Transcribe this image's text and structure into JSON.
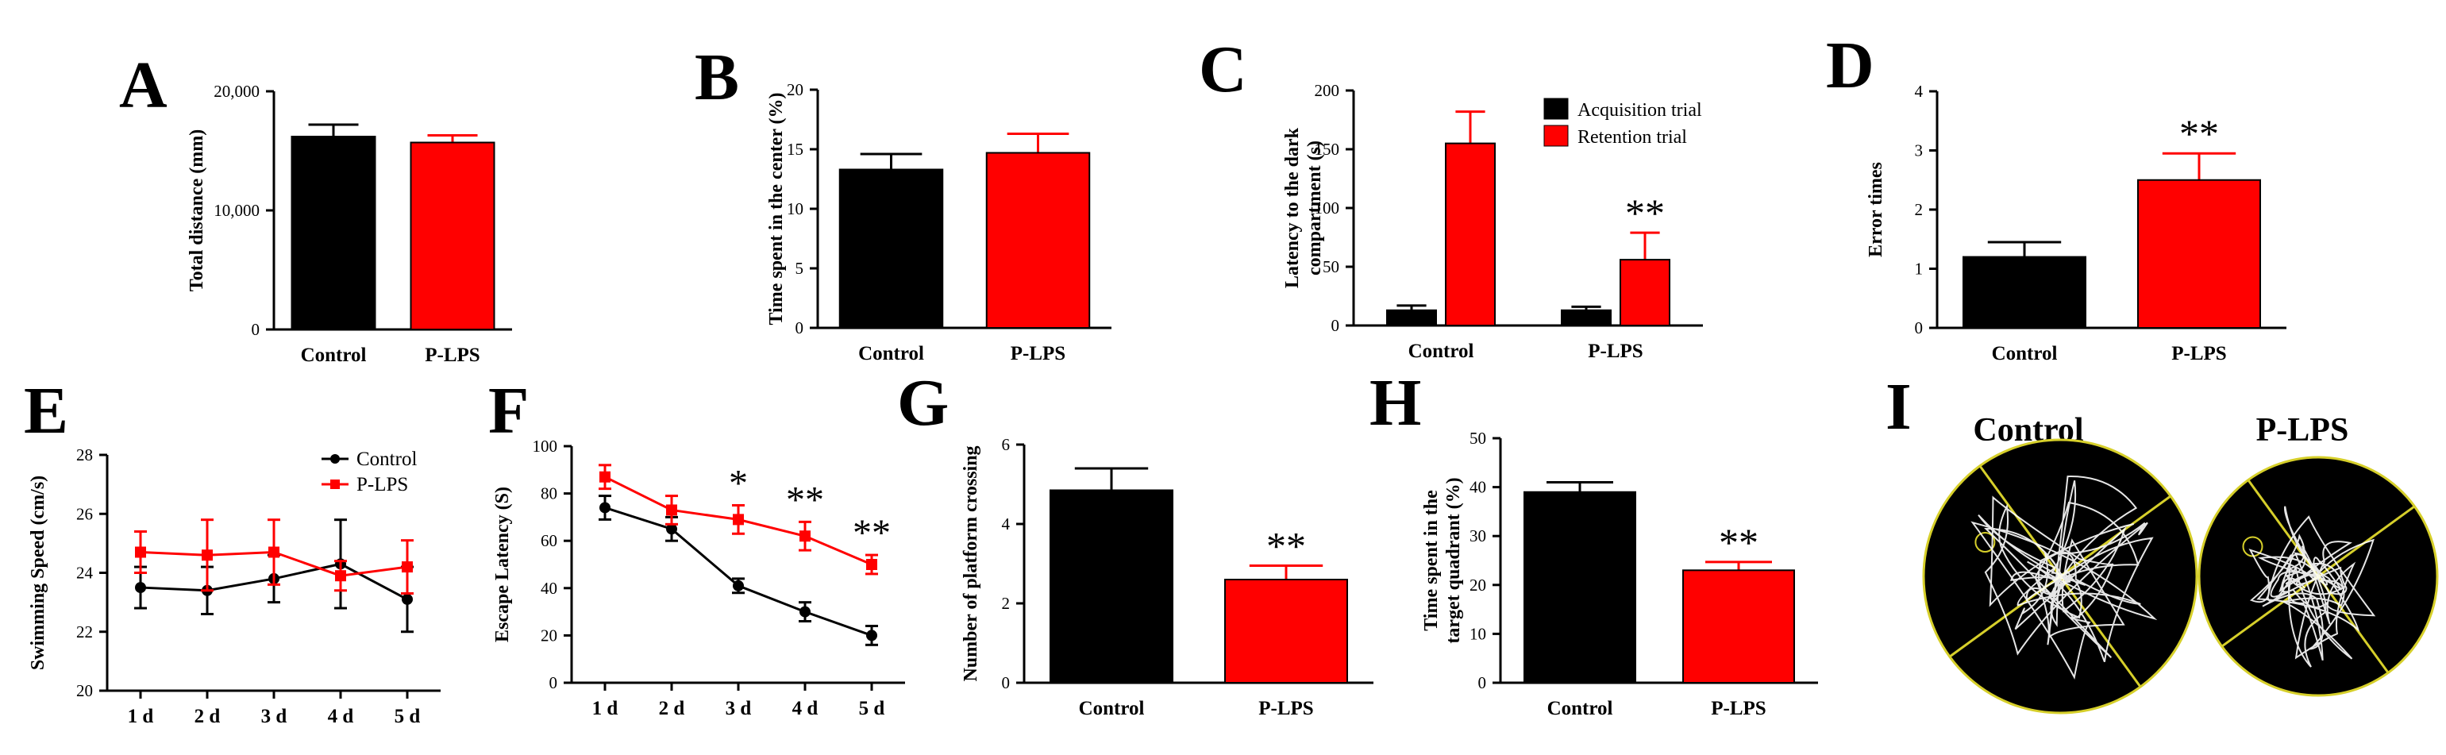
{
  "colors": {
    "control": "#000000",
    "plps": "#ff0000",
    "track_bg": "#000000",
    "track_line": "#ffffff",
    "quadrant_line": "#d6cf2a"
  },
  "panels_text": {
    "A": "A",
    "B": "B",
    "C": "C",
    "D": "D",
    "E": "E",
    "F": "F",
    "G": "G",
    "H": "H",
    "I": "I"
  },
  "chart_data": [
    {
      "id": "A",
      "type": "bar",
      "categories": [
        "Control",
        "P-LPS"
      ],
      "values": [
        16200,
        15700
      ],
      "errors": [
        1000,
        600
      ],
      "ylabel": "Total distance (mm)",
      "ylim": [
        0,
        20000
      ],
      "yticks": [
        0,
        10000,
        20000
      ],
      "ytick_labels": [
        "0",
        "10,000",
        "20,000"
      ],
      "significance": [
        "",
        ""
      ]
    },
    {
      "id": "B",
      "type": "bar",
      "categories": [
        "Control",
        "P-LPS"
      ],
      "values": [
        13.3,
        14.7
      ],
      "errors": [
        1.3,
        1.6
      ],
      "ylabel": "Time spent in the center (%)",
      "ylim": [
        0,
        20
      ],
      "yticks": [
        0,
        5,
        10,
        15,
        20
      ],
      "ytick_labels": [
        "0",
        "5",
        "10",
        "15",
        "20"
      ],
      "significance": [
        "",
        ""
      ]
    },
    {
      "id": "C",
      "type": "bar",
      "categories": [
        "Control",
        "P-LPS"
      ],
      "series": [
        {
          "name": "Acquisition trial",
          "values": [
            13,
            13
          ],
          "errors": [
            4,
            3
          ]
        },
        {
          "name": "Retention trial",
          "values": [
            155,
            56
          ],
          "errors": [
            27,
            23
          ]
        }
      ],
      "ylabel": "Latency to the dark compartment (s)",
      "ylabel_lines": [
        "Latency to the dark",
        "compartment (s)"
      ],
      "ylim": [
        0,
        200
      ],
      "yticks": [
        0,
        50,
        100,
        150,
        200
      ],
      "ytick_labels": [
        "0",
        "50",
        "100",
        "150",
        "200"
      ],
      "legend": "top-right",
      "significance": [
        "",
        "**"
      ]
    },
    {
      "id": "D",
      "type": "bar",
      "categories": [
        "Control",
        "P-LPS"
      ],
      "values": [
        1.2,
        2.5
      ],
      "errors": [
        0.25,
        0.45
      ],
      "ylabel": "Error times",
      "ylim": [
        0,
        4
      ],
      "yticks": [
        0,
        1,
        2,
        3,
        4
      ],
      "ytick_labels": [
        "0",
        "1",
        "2",
        "3",
        "4"
      ],
      "significance": [
        "",
        "**"
      ]
    },
    {
      "id": "E",
      "type": "line",
      "x": [
        "1 d",
        "2 d",
        "3 d",
        "4 d",
        "5 d"
      ],
      "series": [
        {
          "name": "Control",
          "values": [
            23.5,
            23.4,
            23.8,
            24.3,
            23.1
          ],
          "errors": [
            0.7,
            0.8,
            0.8,
            1.5,
            1.1
          ]
        },
        {
          "name": "P-LPS",
          "values": [
            24.7,
            24.6,
            24.7,
            23.9,
            24.2
          ],
          "errors": [
            0.7,
            1.2,
            1.1,
            0.5,
            0.9
          ]
        }
      ],
      "ylabel": "Swimming Speed (cm/s)",
      "ylim": [
        20,
        28
      ],
      "yticks": [
        20,
        22,
        24,
        26,
        28
      ],
      "ytick_labels": [
        "20",
        "22",
        "24",
        "26",
        "28"
      ],
      "legend": "top-right",
      "significance": [
        "",
        "",
        "",
        "",
        ""
      ]
    },
    {
      "id": "F",
      "type": "line",
      "x": [
        "1 d",
        "2 d",
        "3 d",
        "4 d",
        "5 d"
      ],
      "series": [
        {
          "name": "Control",
          "values": [
            74,
            65,
            41,
            30,
            20
          ],
          "errors": [
            5,
            5,
            3,
            4,
            4
          ]
        },
        {
          "name": "P-LPS",
          "values": [
            87,
            73,
            69,
            62,
            50
          ],
          "errors": [
            5,
            6,
            6,
            6,
            4
          ]
        }
      ],
      "ylabel": "Escape Latency (S)",
      "ylim": [
        0,
        100
      ],
      "yticks": [
        0,
        20,
        40,
        60,
        80,
        100
      ],
      "ytick_labels": [
        "0",
        "20",
        "40",
        "60",
        "80",
        "100"
      ],
      "significance": [
        "",
        "",
        "*",
        "**",
        "**"
      ]
    },
    {
      "id": "G",
      "type": "bar",
      "categories": [
        "Control",
        "P-LPS"
      ],
      "values": [
        4.85,
        2.6
      ],
      "errors": [
        0.55,
        0.35
      ],
      "ylabel": "Number of platform crossing",
      "ylim": [
        0,
        6
      ],
      "yticks": [
        0,
        2,
        4,
        6
      ],
      "ytick_labels": [
        "0",
        "2",
        "4",
        "6"
      ],
      "significance": [
        "",
        "**"
      ]
    },
    {
      "id": "H",
      "type": "bar",
      "categories": [
        "Control",
        "P-LPS"
      ],
      "values": [
        39,
        23
      ],
      "errors": [
        2,
        1.7
      ],
      "ylabel": "Time spent in the target quadrant (%)",
      "ylabel_lines": [
        "Time spent in the",
        "target quadrant (%)"
      ],
      "ylim": [
        0,
        50
      ],
      "yticks": [
        0,
        10,
        20,
        30,
        40,
        50
      ],
      "ytick_labels": [
        "0",
        "10",
        "20",
        "30",
        "40",
        "50"
      ],
      "significance": [
        "",
        "**"
      ]
    }
  ],
  "panel_I": {
    "labels": [
      "Control",
      "P-LPS"
    ]
  }
}
